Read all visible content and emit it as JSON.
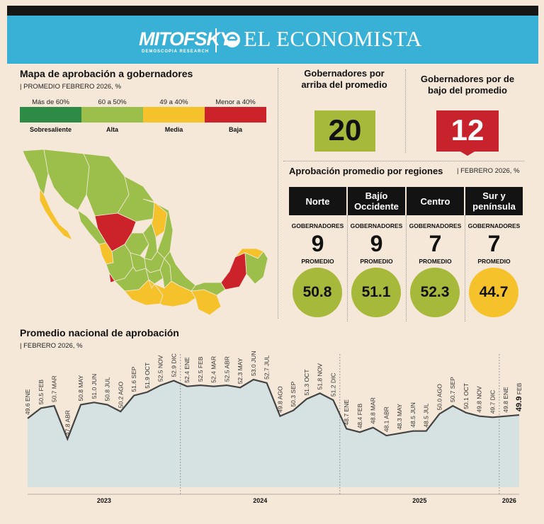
{
  "header": {
    "brand_left": "MITOFSKY",
    "brand_left_sub": "DEMOSCOPIA RESEARCH",
    "brand_right": "EL ECONOMISTA"
  },
  "map_section": {
    "title": "Mapa de aprobación a gobernadores",
    "subtitle": "PROMEDIO FEBRERO 2026, %",
    "legend": [
      {
        "range": "Más de 60%",
        "label": "Sobresaliente",
        "color": "#2e8b45"
      },
      {
        "range": "60 a 50%",
        "label": "Alta",
        "color": "#9cbf4c"
      },
      {
        "range": "49 a 40%",
        "label": "Media",
        "color": "#f6c22c"
      },
      {
        "range": "Menor a 40%",
        "label": "Baja",
        "color": "#cc2229"
      }
    ]
  },
  "governors": {
    "above_title": "Gobernadores por arriba del promedio",
    "above_count": "20",
    "above_color": "#a7b93a",
    "below_title": "Gobernadores por de bajo del promedio",
    "below_count": "12",
    "below_color": "#c8232c"
  },
  "regions_section": {
    "title": "Aprobación promedio por regiones",
    "subtitle": "FEBRERO 2026, %",
    "gov_label": "GOBERNADORES",
    "avg_label": "PROMEDIO",
    "regions": [
      {
        "name": "Norte",
        "governors": "9",
        "average": "50.8",
        "color": "#a7b93a"
      },
      {
        "name": "Bajío Occidente",
        "governors": "9",
        "average": "51.1",
        "color": "#a7b93a"
      },
      {
        "name": "Centro",
        "governors": "7",
        "average": "52.3",
        "color": "#a7b93a"
      },
      {
        "name": "Sur y península",
        "governors": "7",
        "average": "44.7",
        "color": "#f6c22c"
      }
    ]
  },
  "chart_section": {
    "title": "Promedio nacional de aprobación",
    "subtitle": "FEBRERO 2026, %"
  },
  "chart_data": {
    "type": "area",
    "title": "Promedio nacional de aprobación",
    "subtitle": "FEBRERO 2026, %",
    "ylim": [
      40,
      56
    ],
    "series": [
      {
        "name": "Promedio nacional",
        "points": [
          {
            "label": "ENE",
            "year": "2023",
            "value": 49.6
          },
          {
            "label": "FEB",
            "year": "2023",
            "value": 50.5
          },
          {
            "label": "MAR",
            "year": "2023",
            "value": 50.7
          },
          {
            "label": "ABR",
            "year": "2023",
            "value": 47.8
          },
          {
            "label": "MAY",
            "year": "2023",
            "value": 50.8
          },
          {
            "label": "JUN",
            "year": "2023",
            "value": 51.0
          },
          {
            "label": "JUL",
            "year": "2023",
            "value": 50.8
          },
          {
            "label": "AGO",
            "year": "2023",
            "value": 50.2
          },
          {
            "label": "SEP",
            "year": "2023",
            "value": 51.6
          },
          {
            "label": "OCT",
            "year": "2023",
            "value": 51.9
          },
          {
            "label": "NOV",
            "year": "2023",
            "value": 52.5
          },
          {
            "label": "DIC",
            "year": "2023",
            "value": 52.9
          },
          {
            "label": "ENE",
            "year": "2024",
            "value": 52.4
          },
          {
            "label": "FEB",
            "year": "2024",
            "value": 52.5
          },
          {
            "label": "MAR",
            "year": "2024",
            "value": 52.4
          },
          {
            "label": "ABR",
            "year": "2024",
            "value": 52.5
          },
          {
            "label": "MAY",
            "year": "2024",
            "value": 52.3
          },
          {
            "label": "JUN",
            "year": "2024",
            "value": 53.0
          },
          {
            "label": "JUL",
            "year": "2024",
            "value": 52.7
          },
          {
            "label": "AGO",
            "year": "2024",
            "value": 49.8
          },
          {
            "label": "SEP",
            "year": "2024",
            "value": 50.3
          },
          {
            "label": "OCT",
            "year": "2024",
            "value": 51.3
          },
          {
            "label": "NOV",
            "year": "2024",
            "value": 51.8
          },
          {
            "label": "DIC",
            "year": "2024",
            "value": 51.2
          },
          {
            "label": "ENE",
            "year": "2025",
            "value": 48.7
          },
          {
            "label": "FEB",
            "year": "2025",
            "value": 48.4
          },
          {
            "label": "MAR",
            "year": "2025",
            "value": 48.8
          },
          {
            "label": "ABR",
            "year": "2025",
            "value": 48.1
          },
          {
            "label": "MAY",
            "year": "2025",
            "value": 48.3
          },
          {
            "label": "JUN",
            "year": "2025",
            "value": 48.5
          },
          {
            "label": "JUL",
            "year": "2025",
            "value": 48.5
          },
          {
            "label": "AGO",
            "year": "2025",
            "value": 50.0
          },
          {
            "label": "SEP",
            "year": "2025",
            "value": 50.7
          },
          {
            "label": "OCT",
            "year": "2025",
            "value": 50.1
          },
          {
            "label": "NOV",
            "year": "2025",
            "value": 49.8
          },
          {
            "label": "DIC",
            "year": "2025",
            "value": 49.7
          },
          {
            "label": "ENE",
            "year": "2026",
            "value": 49.8
          },
          {
            "label": "FEB",
            "year": "2026",
            "value": 49.9
          }
        ]
      }
    ],
    "years": [
      "2023",
      "2024",
      "2025",
      "2026"
    ],
    "highlight_last": true
  }
}
